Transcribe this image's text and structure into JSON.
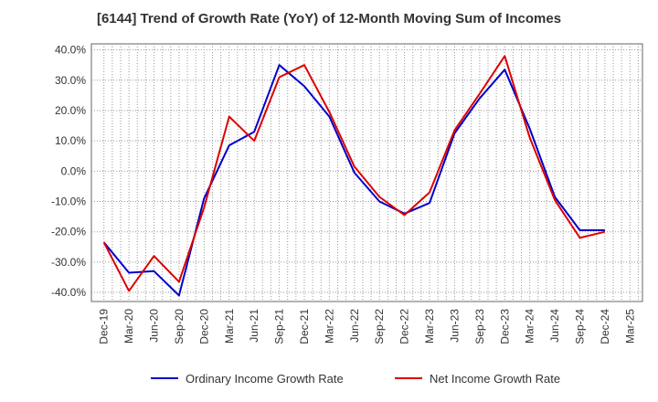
{
  "chart_data": {
    "type": "line",
    "title": "[6144]  Trend of Growth Rate (YoY) of 12-Month Moving Sum of Incomes",
    "x": [
      "Dec-19",
      "Mar-20",
      "Jun-20",
      "Sep-20",
      "Dec-20",
      "Mar-21",
      "Jun-21",
      "Sep-21",
      "Dec-21",
      "Mar-22",
      "Jun-22",
      "Sep-22",
      "Dec-22",
      "Mar-23",
      "Jun-23",
      "Sep-23",
      "Dec-23",
      "Mar-24",
      "Jun-24",
      "Sep-24",
      "Dec-24",
      "Mar-25"
    ],
    "y_ticks": [
      "40.0%",
      "30.0%",
      "20.0%",
      "10.0%",
      "0.0%",
      "-10.0%",
      "-20.0%",
      "-30.0%",
      "-40.0%"
    ],
    "ylim": [
      -43,
      42
    ],
    "grid": true,
    "legend_position": "bottom",
    "series": [
      {
        "name": "Ordinary Income Growth Rate",
        "color": "#0000cc",
        "values": [
          -23.5,
          -33.5,
          -33.0,
          -41.0,
          -9.0,
          8.5,
          13.0,
          35.0,
          28.0,
          18.0,
          -0.5,
          -10.0,
          -14.0,
          -10.5,
          12.5,
          24.0,
          33.5,
          14.0,
          -8.5,
          -19.5,
          -19.5,
          null
        ]
      },
      {
        "name": "Net Income Growth Rate",
        "color": "#dd0000",
        "values": [
          -23.5,
          -39.5,
          -28.0,
          -36.5,
          -12.0,
          18.0,
          10.0,
          31.0,
          35.0,
          19.5,
          1.5,
          -8.5,
          -14.5,
          -7.0,
          13.5,
          25.5,
          38.0,
          11.0,
          -9.5,
          -22.0,
          -20.0,
          null
        ]
      }
    ]
  }
}
